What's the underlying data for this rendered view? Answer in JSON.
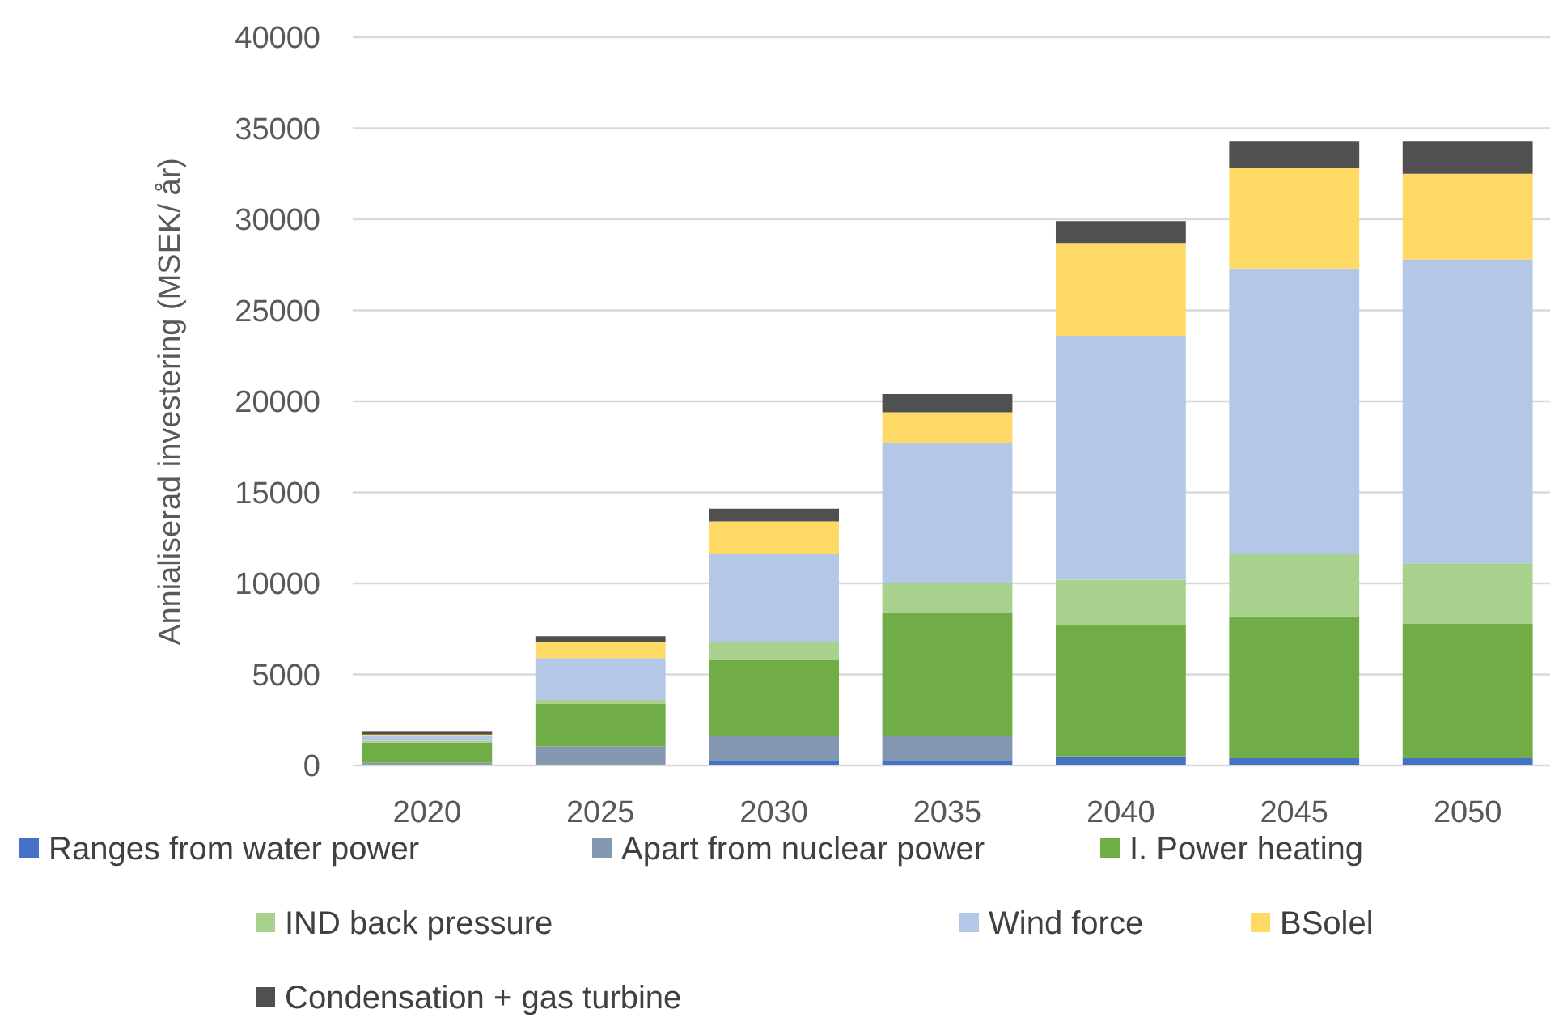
{
  "chart_data": {
    "type": "bar",
    "stacked": true,
    "ylabel": "Annialiserad investering (MSEK/ år)",
    "categories": [
      "2020",
      "2025",
      "2030",
      "2035",
      "2040",
      "2045",
      "2050"
    ],
    "ylim": [
      0,
      40000
    ],
    "yticks": [
      0,
      5000,
      10000,
      15000,
      20000,
      25000,
      30000,
      35000,
      40000
    ],
    "grid": "y",
    "legend": "bottom",
    "series": [
      {
        "name": "Ranges from water power",
        "color": "#4472c4",
        "values": [
          50,
          50,
          300,
          300,
          500,
          400,
          400
        ]
      },
      {
        "name": "Apart from nuclear power",
        "color": "#8497b0",
        "values": [
          100,
          1000,
          1300,
          1300,
          0,
          0,
          0
        ]
      },
      {
        "name": "I. Power heating",
        "color": "#70ad47",
        "values": [
          1100,
          2350,
          4200,
          6800,
          7200,
          7800,
          7400
        ]
      },
      {
        "name": "IND back pressure",
        "color": "#a9d18e",
        "values": [
          100,
          200,
          1000,
          1600,
          2500,
          3400,
          3300
        ]
      },
      {
        "name": "Wind force",
        "color": "#b4c7e7",
        "values": [
          300,
          2300,
          4800,
          7700,
          13400,
          15700,
          16700
        ]
      },
      {
        "name": "BSolel",
        "color": "#ffd966",
        "values": [
          50,
          900,
          1800,
          1700,
          5100,
          5500,
          4700
        ]
      },
      {
        "name": "Condensation + gas turbine",
        "color": "#505050",
        "values": [
          150,
          300,
          700,
          1000,
          1200,
          1500,
          1800
        ]
      }
    ]
  }
}
